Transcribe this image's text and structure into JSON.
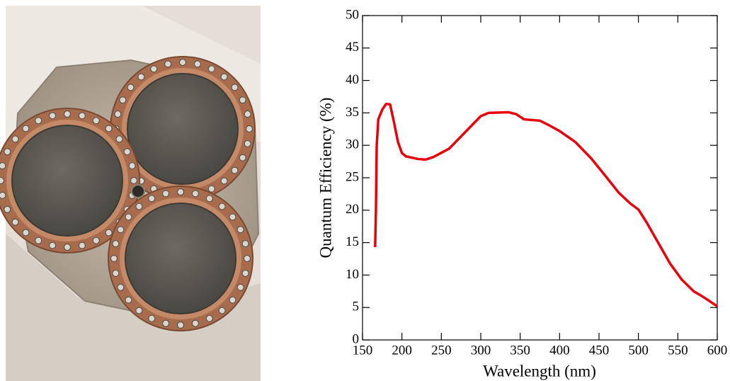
{
  "chart_data": {
    "type": "line",
    "xlabel": "Wavelength (nm)",
    "ylabel": "Quantum Efficiency (%)",
    "x": [
      166,
      167,
      168,
      170,
      175,
      180,
      185,
      190,
      195,
      200,
      205,
      220,
      230,
      240,
      260,
      280,
      300,
      310,
      335,
      345,
      355,
      375,
      385,
      400,
      420,
      440,
      460,
      475,
      490,
      500,
      510,
      525,
      540,
      555,
      570,
      580,
      590,
      600
    ],
    "values": [
      14.3,
      20,
      30,
      34,
      35.5,
      36.4,
      36.3,
      33.5,
      30.5,
      28.8,
      28.3,
      27.9,
      27.8,
      28.2,
      29.5,
      32,
      34.5,
      35,
      35.1,
      34.8,
      34,
      33.8,
      33.2,
      32.2,
      30.5,
      28,
      25,
      22.7,
      21,
      20.1,
      18.2,
      15,
      11.8,
      9.3,
      7.5,
      6.8,
      6,
      5.2
    ],
    "color": "#e8000b",
    "xlim": [
      150,
      600
    ],
    "ylim": [
      0,
      50
    ],
    "xticks": [
      150,
      200,
      250,
      300,
      350,
      400,
      450,
      500,
      550,
      600
    ],
    "yticks": [
      0,
      5,
      10,
      15,
      20,
      25,
      30,
      35,
      40,
      45,
      50
    ]
  }
}
